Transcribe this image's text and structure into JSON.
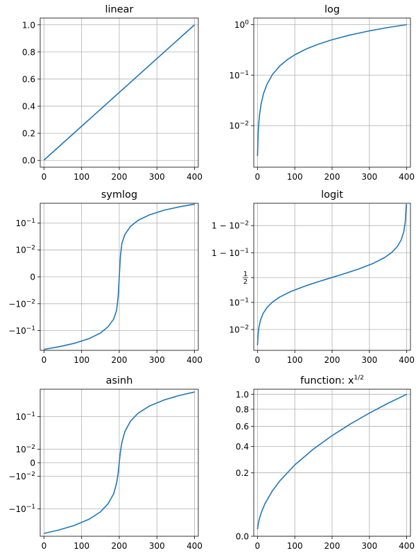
{
  "chart_data": [
    {
      "type": "line",
      "title": "linear",
      "yscale": "linear",
      "grid": true,
      "series_color": "#1f77b4",
      "xlim": [
        -10,
        410
      ],
      "ylim": [
        -0.05,
        1.05
      ],
      "xticks": [
        {
          "v": 0,
          "label": "0"
        },
        {
          "v": 100,
          "label": "100"
        },
        {
          "v": 200,
          "label": "200"
        },
        {
          "v": 300,
          "label": "300"
        },
        {
          "v": 400,
          "label": "400"
        }
      ],
      "yticks": [
        {
          "v": 0.0,
          "label": "0.0"
        },
        {
          "v": 0.2,
          "label": "0.2"
        },
        {
          "v": 0.4,
          "label": "0.4"
        },
        {
          "v": 0.6,
          "label": "0.6"
        },
        {
          "v": 0.8,
          "label": "0.8"
        },
        {
          "v": 1.0,
          "label": "1.0"
        }
      ],
      "x": [
        0,
        400
      ],
      "y": [
        0.0025,
        1.0
      ]
    },
    {
      "type": "line",
      "title": "log",
      "yscale": "log",
      "grid": true,
      "series_color": "#1f77b4",
      "xlim": [
        -10,
        410
      ],
      "ylim": [
        0.0015,
        1.35
      ],
      "xticks": [
        {
          "v": 0,
          "label": "0"
        },
        {
          "v": 100,
          "label": "100"
        },
        {
          "v": 200,
          "label": "200"
        },
        {
          "v": 300,
          "label": "300"
        },
        {
          "v": 400,
          "label": "400"
        }
      ],
      "yticks": [
        {
          "v": 0.01,
          "label": "10",
          "sup": "−2"
        },
        {
          "v": 0.1,
          "label": "10",
          "sup": "−1"
        },
        {
          "v": 1,
          "label": "10",
          "sup": "0"
        }
      ],
      "x": [
        0,
        2,
        4,
        6,
        10,
        16,
        25,
        40,
        60,
        80,
        100,
        130,
        160,
        200,
        250,
        300,
        350,
        400
      ],
      "y": [
        0.0025,
        0.0075,
        0.0125,
        0.0175,
        0.0275,
        0.0425,
        0.065,
        0.1025,
        0.1525,
        0.2025,
        0.2525,
        0.3275,
        0.4025,
        0.5025,
        0.6275,
        0.7525,
        0.8775,
        1.0
      ]
    },
    {
      "type": "line",
      "title": "symlog",
      "yscale": "symlog",
      "grid": true,
      "series_color": "#1f77b4",
      "xlim": [
        -10,
        410
      ],
      "ylim": [
        -0.54,
        0.54
      ],
      "xticks": [
        {
          "v": 0,
          "label": "0"
        },
        {
          "v": 100,
          "label": "100"
        },
        {
          "v": 200,
          "label": "200"
        },
        {
          "v": 300,
          "label": "300"
        },
        {
          "v": 400,
          "label": "400"
        }
      ],
      "yticks": [
        {
          "v": -0.1,
          "label": "−10",
          "sup": "−1"
        },
        {
          "v": -0.01,
          "label": "−10",
          "sup": "−2"
        },
        {
          "v": 0,
          "label": "0"
        },
        {
          "v": 0.01,
          "label": "10",
          "sup": "−2"
        },
        {
          "v": 0.1,
          "label": "10",
          "sup": "−1"
        }
      ],
      "x": [
        0,
        40,
        80,
        120,
        150,
        170,
        185,
        193,
        197,
        199,
        200,
        201,
        203,
        207,
        215,
        230,
        250,
        280,
        320,
        360,
        400
      ],
      "y": [
        -0.4975,
        -0.3975,
        -0.2975,
        -0.1975,
        -0.1225,
        -0.0725,
        -0.0375,
        -0.0175,
        -0.0075,
        -0.0025,
        0.0,
        0.0025,
        0.0075,
        0.0175,
        0.0375,
        0.075,
        0.125,
        0.2,
        0.3,
        0.4,
        0.5
      ]
    },
    {
      "type": "line",
      "title": "logit",
      "yscale": "logit",
      "grid": true,
      "series_color": "#1f77b4",
      "xlim": [
        -10,
        410
      ],
      "ylim": [
        0.0016,
        0.9986
      ],
      "xticks": [
        {
          "v": 0,
          "label": "0"
        },
        {
          "v": 100,
          "label": "100"
        },
        {
          "v": 200,
          "label": "200"
        },
        {
          "v": 300,
          "label": "300"
        },
        {
          "v": 400,
          "label": "400"
        }
      ],
      "yticks": [
        {
          "v": 0.01,
          "label": "10",
          "sup": "−2"
        },
        {
          "v": 0.1,
          "label": "10",
          "sup": "−1"
        },
        {
          "v": 0.5,
          "frac": [
            "1",
            "2"
          ]
        },
        {
          "v": 0.9,
          "label": "1 − 10",
          "sup": "−1"
        },
        {
          "v": 0.99,
          "label": "1 − 10",
          "sup": "−2"
        }
      ],
      "x": [
        0,
        2,
        4,
        8,
        15,
        25,
        40,
        60,
        90,
        130,
        170,
        200,
        230,
        270,
        310,
        340,
        360,
        375,
        385,
        392,
        396,
        398,
        399
      ],
      "y": [
        0.0025,
        0.0075,
        0.0125,
        0.0225,
        0.04,
        0.065,
        0.1025,
        0.1525,
        0.2275,
        0.3275,
        0.4275,
        0.5025,
        0.5775,
        0.6775,
        0.7775,
        0.8525,
        0.9025,
        0.94,
        0.965,
        0.9825,
        0.9925,
        0.9975,
        0.9985
      ]
    },
    {
      "type": "line",
      "title": "asinh",
      "yscale": "asinh",
      "grid": true,
      "series_color": "#1f77b4",
      "xlim": [
        -10,
        410
      ],
      "ylim": [
        -0.6,
        0.6
      ],
      "xticks": [
        {
          "v": 0,
          "label": "0"
        },
        {
          "v": 100,
          "label": "100"
        },
        {
          "v": 200,
          "label": "200"
        },
        {
          "v": 300,
          "label": "300"
        },
        {
          "v": 400,
          "label": "400"
        }
      ],
      "yticks": [
        {
          "v": -0.1,
          "label": "−10",
          "sup": "−1"
        },
        {
          "v": -0.01,
          "label": "−10",
          "sup": "−2"
        },
        {
          "v": 0,
          "label": "0"
        },
        {
          "v": 0.01,
          "label": "10",
          "sup": "−2"
        },
        {
          "v": 0.1,
          "label": "10",
          "sup": "−1"
        }
      ],
      "x": [
        0,
        40,
        80,
        120,
        150,
        170,
        185,
        193,
        197,
        199,
        200,
        201,
        203,
        207,
        215,
        230,
        250,
        280,
        320,
        360,
        400
      ],
      "y": [
        -0.4975,
        -0.3975,
        -0.2975,
        -0.1975,
        -0.1225,
        -0.0725,
        -0.0375,
        -0.0175,
        -0.0075,
        -0.0025,
        0.0,
        0.0025,
        0.0075,
        0.0175,
        0.0375,
        0.075,
        0.125,
        0.2,
        0.3,
        0.4,
        0.5
      ]
    },
    {
      "type": "line",
      "title": "function: x",
      "title_sup": "1/2",
      "yscale": "sqrt",
      "grid": true,
      "series_color": "#1f77b4",
      "xlim": [
        -10,
        410
      ],
      "ylim": [
        0.0,
        1.0725
      ],
      "xticks": [
        {
          "v": 0,
          "label": "0"
        },
        {
          "v": 100,
          "label": "100"
        },
        {
          "v": 200,
          "label": "200"
        },
        {
          "v": 300,
          "label": "300"
        },
        {
          "v": 400,
          "label": "400"
        }
      ],
      "yticks": [
        {
          "v": 0.0,
          "label": "0.0"
        },
        {
          "v": 0.2,
          "label": "0.2"
        },
        {
          "v": 0.4,
          "label": "0.4"
        },
        {
          "v": 0.6,
          "label": "0.6"
        },
        {
          "v": 0.8,
          "label": "0.8"
        },
        {
          "v": 1.0,
          "label": "1.0"
        }
      ],
      "x": [
        0,
        2,
        5,
        10,
        20,
        40,
        60,
        100,
        150,
        200,
        250,
        300,
        350,
        400
      ],
      "y": [
        0.0025,
        0.0075,
        0.015,
        0.0275,
        0.0525,
        0.1025,
        0.1525,
        0.2525,
        0.3775,
        0.5025,
        0.6275,
        0.7525,
        0.8775,
        1.0
      ]
    }
  ]
}
